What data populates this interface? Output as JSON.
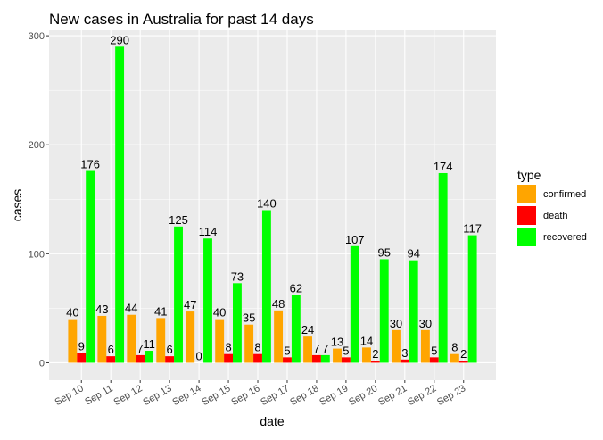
{
  "chart_data": {
    "type": "bar",
    "title": "New cases in Australia for past 14 days",
    "xlabel": "date",
    "ylabel": "cases",
    "categories": [
      "Sep 10",
      "Sep 11",
      "Sep 12",
      "Sep 13",
      "Sep 14",
      "Sep 15",
      "Sep 16",
      "Sep 17",
      "Sep 18",
      "Sep 19",
      "Sep 20",
      "Sep 21",
      "Sep 22",
      "Sep 23"
    ],
    "series": [
      {
        "name": "confirmed",
        "color": "#ffa500",
        "values": [
          40,
          43,
          44,
          41,
          47,
          40,
          35,
          48,
          24,
          13,
          14,
          30,
          30,
          8
        ]
      },
      {
        "name": "death",
        "color": "#ff0000",
        "values": [
          9,
          6,
          7,
          6,
          0,
          8,
          8,
          5,
          7,
          5,
          2,
          3,
          5,
          2
        ]
      },
      {
        "name": "recovered",
        "color": "#00ff00",
        "values": [
          176,
          290,
          11,
          125,
          114,
          73,
          140,
          62,
          7,
          107,
          95,
          94,
          174,
          117
        ]
      }
    ],
    "ylim": [
      -16,
      305
    ],
    "yticks": [
      0,
      100,
      200,
      300
    ],
    "legend_title": "type",
    "legend_position": "right",
    "grid": true,
    "panel_background": "#ebebeb"
  }
}
